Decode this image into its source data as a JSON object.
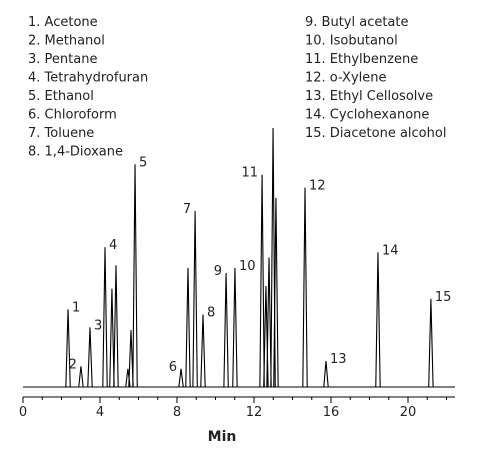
{
  "chart_data": {
    "type": "chromatogram",
    "compounds": [
      "1.  Acetone",
      "2.  Methanol",
      "3.  Pentane",
      "4.  Tetrahydrofuran",
      "5.  Ethanol",
      "6.  Chloroform",
      "7.  Toluene",
      "8.  1,4-Dioxane",
      "9.  Butyl acetate",
      "10.  Isobutanol",
      "11.  Ethylbenzene",
      "12.  o-Xylene",
      "13.  Ethyl Cellosolve",
      "14.  Cyclohexanone",
      "15.  Diacetone alcohol"
    ],
    "x": [
      2.34,
      3.01,
      3.48,
      4.26,
      4.62,
      4.83,
      5.45,
      5.61,
      5.82,
      8.21,
      8.57,
      8.94,
      9.35,
      10.55,
      11.01,
      12.42,
      12.62,
      12.78,
      12.99,
      13.14,
      14.65,
      15.74,
      18.44,
      21.19
    ],
    "values": [
      30,
      8,
      23,
      54,
      38,
      47,
      7,
      22,
      86,
      7,
      46,
      68,
      28,
      44,
      46,
      82,
      39,
      50,
      100,
      73,
      77,
      10,
      52,
      34
    ],
    "peak_labels": [
      "1",
      "2",
      "3",
      "4",
      null,
      null,
      null,
      null,
      "5",
      "6",
      null,
      "7",
      "8",
      "9",
      "10",
      "11",
      null,
      null,
      null,
      null,
      "12",
      "13",
      "14",
      "15"
    ],
    "color": "#000000",
    "xlim": [
      0,
      22.3
    ],
    "ylim": [
      0,
      100
    ],
    "xticks": [
      0,
      4,
      8,
      12,
      16,
      20
    ],
    "xlabel": "Min"
  }
}
